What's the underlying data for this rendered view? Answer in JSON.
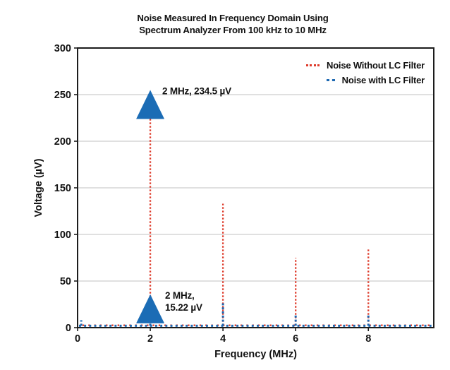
{
  "chart_data": {
    "type": "line",
    "style": "dotted-vertical-spikes",
    "title": "Noise Measured In Frequency Domain Using Spectrum Analyzer From 100 kHz to 10 MHz",
    "title_lines": [
      "Noise Measured In Frequency Domain Using",
      "Spectrum Analyzer From 100 kHz to 10 MHz"
    ],
    "xlabel": "Frequency (MHz)",
    "ylabel": "Voltage (µV)",
    "xlim": [
      0,
      9.8
    ],
    "ylim": [
      0,
      300
    ],
    "xticks": [
      0,
      2,
      4,
      6,
      8
    ],
    "yticks": [
      0,
      50,
      100,
      150,
      200,
      250,
      300
    ],
    "grid": "horizontal",
    "grid_color": "#d6d6d6",
    "legend_position": "top-right-inside",
    "series": [
      {
        "name": "Noise Without LC Filter",
        "color": "#de3b2b",
        "marker": "red-dotted-line",
        "baseline_uV": 2.5,
        "spikes": [
          {
            "x": 0.1,
            "y": 5
          },
          {
            "x": 2,
            "y": 234.5
          },
          {
            "x": 4,
            "y": 133
          },
          {
            "x": 6,
            "y": 75
          },
          {
            "x": 8,
            "y": 85
          }
        ]
      },
      {
        "name": "Noise with LC Filter",
        "color": "#1e69b2",
        "marker": "blue-dotted-line",
        "baseline_uV": 2,
        "spikes": [
          {
            "x": 0.1,
            "y": 8
          },
          {
            "x": 2,
            "y": 15.22
          },
          {
            "x": 4,
            "y": 27
          },
          {
            "x": 6,
            "y": 14
          },
          {
            "x": 8,
            "y": 15
          }
        ]
      }
    ],
    "annotations": [
      {
        "text": "2 MHz, 234.5 µV",
        "x": 2,
        "y": 234.5,
        "marker": "triangle-up",
        "marker_color": "#1b6cb5"
      },
      {
        "text": "2 MHz,\n15.22 µV",
        "x": 2,
        "y": 15.22,
        "marker": "triangle-up",
        "marker_color": "#1b6cb5"
      }
    ]
  }
}
